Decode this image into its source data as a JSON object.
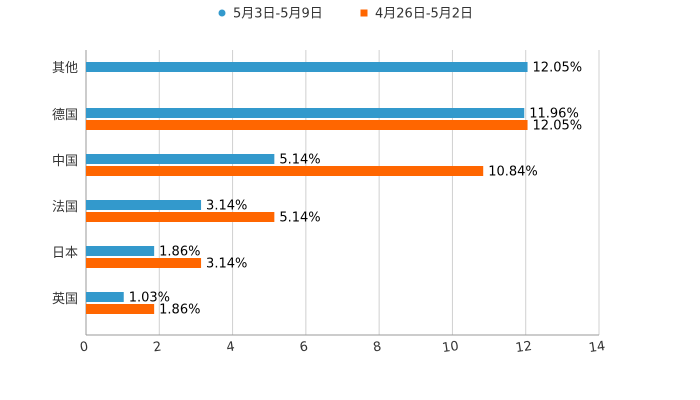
{
  "chart_data": {
    "type": "bar",
    "orientation": "horizontal",
    "categories": [
      "其他",
      "德国",
      "中国",
      "法国",
      "日本",
      "英国"
    ],
    "series": [
      {
        "name": "5月3日-5月9日",
        "color": "#3399cc",
        "values": [
          12.05,
          11.96,
          5.14,
          3.14,
          1.86,
          1.03
        ],
        "labels": [
          "12.05%",
          "11.96%",
          "5.14%",
          "3.14%",
          "1.86%",
          "1.03%"
        ]
      },
      {
        "name": "4月26日-5月2日",
        "color": "#ff6600",
        "values": [
          null,
          12.05,
          10.84,
          5.14,
          3.14,
          1.86
        ],
        "labels": [
          "",
          "12.05%",
          "10.84%",
          "5.14%",
          "3.14%",
          "1.86%"
        ]
      }
    ],
    "xlim": [
      0,
      14
    ],
    "xticks": [
      "0",
      "2",
      "4",
      "6",
      "8",
      "10",
      "12",
      "14"
    ],
    "grid": true,
    "legend": "top-center"
  }
}
